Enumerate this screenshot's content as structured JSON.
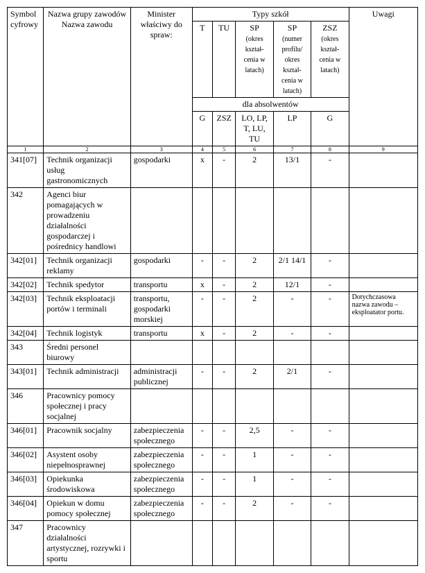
{
  "headers": {
    "symbol": "Symbol cyfrowy",
    "nazwa": "Nazwa grupy zawodów\nNazwa zawodu",
    "minister": "Minister właściwy do spraw:",
    "typy": "Typy szkół",
    "uwagi": "Uwagi",
    "t": "T",
    "tu": "TU",
    "sp1": "SP",
    "sp1_sub": "(okres kształ-\ncenia w latach)",
    "sp2": "SP",
    "sp2_sub": "(numer profilu/ okres kształ-\ncenia w latach)",
    "zsz": "ZSZ",
    "zsz_sub": "(okres kształ-\ncenia w latach)",
    "dla": "dla absolwentów",
    "g": "G",
    "zsz2": "ZSZ",
    "lo": "LO, LP, T, LU, TU",
    "lp": "LP",
    "g2": "G"
  },
  "colnums": [
    "1",
    "2",
    "3",
    "4",
    "5",
    "6",
    "7",
    "8",
    "9"
  ],
  "rows": [
    {
      "c1": "341[07]",
      "c2": "Technik organizacji usług gastronomicznych",
      "c3": "gospodarki",
      "c4": "x",
      "c5": "-",
      "c6": "2",
      "c7": "13/1",
      "c8": "-",
      "c9": ""
    },
    {
      "c1": "342",
      "c2": "Agenci biur pomagających w prowadzeniu działalności gospodarczej i pośrednicy handlowi",
      "c3": "",
      "c4": "",
      "c5": "",
      "c6": "",
      "c7": "",
      "c8": "",
      "c9": ""
    },
    {
      "c1": "342[01]",
      "c2": "Technik organizacji reklamy",
      "c3": "gospodarki",
      "c4": "-",
      "c5": "-",
      "c6": "2",
      "c7": "2/1 14/1",
      "c8": "-",
      "c9": ""
    },
    {
      "c1": "342[02]",
      "c2": "Technik spedytor",
      "c3": "transportu",
      "c4": "x",
      "c5": "-",
      "c6": "2",
      "c7": "12/1",
      "c8": "-",
      "c9": ""
    },
    {
      "c1": "342[03]",
      "c2": "Technik eksploatacji portów i terminali",
      "c3": "transportu, gospodarki morskiej",
      "c4": "-",
      "c5": "-",
      "c6": "2",
      "c7": "-",
      "c8": "-",
      "c9": "Dotychczasowa nazwa zawodu – eksploatator portu."
    },
    {
      "c1": "342[04]",
      "c2": "Technik logistyk",
      "c3": "transportu",
      "c4": "x",
      "c5": "-",
      "c6": "2",
      "c7": "-",
      "c8": "-",
      "c9": ""
    },
    {
      "c1": "343",
      "c2": "Średni personel biurowy",
      "c3": "",
      "c4": "",
      "c5": "",
      "c6": "",
      "c7": "",
      "c8": "",
      "c9": ""
    },
    {
      "c1": "343[01]",
      "c2": "Technik administracji",
      "c3": "administracji publicznej",
      "c4": "-",
      "c5": "-",
      "c6": "2",
      "c7": "2/1",
      "c8": "-",
      "c9": ""
    },
    {
      "c1": "346",
      "c2": "Pracownicy pomocy społecznej i pracy socjalnej",
      "c3": "",
      "c4": "",
      "c5": "",
      "c6": "",
      "c7": "",
      "c8": "",
      "c9": ""
    },
    {
      "c1": "346[01]",
      "c2": "Pracownik socjalny",
      "c3": "zabezpieczenia społecznego",
      "c4": "-",
      "c5": "-",
      "c6": "2,5",
      "c7": "-",
      "c8": "-",
      "c9": ""
    },
    {
      "c1": "346[02]",
      "c2": "Asystent osoby niepełnosprawnej",
      "c3": "zabezpieczenia społecznego",
      "c4": "-",
      "c5": "-",
      "c6": "1",
      "c7": "-",
      "c8": "-",
      "c9": ""
    },
    {
      "c1": "346[03]",
      "c2": "Opiekunka środowiskowa",
      "c3": "zabezpieczenia społecznego",
      "c4": "-",
      "c5": "-",
      "c6": "1",
      "c7": "-",
      "c8": "-",
      "c9": ""
    },
    {
      "c1": "346[04]",
      "c2": "Opiekun w domu pomocy społecznej",
      "c3": "zabezpieczenia społecznego",
      "c4": "-",
      "c5": "-",
      "c6": "2",
      "c7": "-",
      "c8": "-",
      "c9": ""
    },
    {
      "c1": "347",
      "c2": "Pracownicy działalności artystycznej, rozrywki i sportu",
      "c3": "",
      "c4": "",
      "c5": "",
      "c6": "",
      "c7": "",
      "c8": "",
      "c9": ""
    }
  ],
  "widths": {
    "c1": "50px",
    "c2": "120px",
    "c3": "85px",
    "c4": "28px",
    "c5": "32px",
    "c6": "52px",
    "c7": "52px",
    "c8": "52px",
    "c9": "95px"
  }
}
